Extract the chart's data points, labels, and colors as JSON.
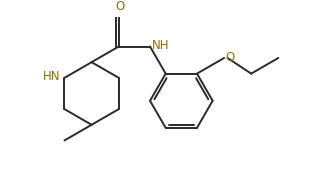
{
  "bg_color": "#ffffff",
  "line_color": "#2a2a2a",
  "atom_color_N": "#8B7000",
  "atom_color_O": "#8B7000",
  "bond_lw": 1.4,
  "font_size": 8.5,
  "fig_width": 3.18,
  "fig_height": 1.92,
  "dpi": 100,
  "xlim": [
    0.0,
    6.2
  ],
  "ylim": [
    -1.8,
    2.2
  ]
}
